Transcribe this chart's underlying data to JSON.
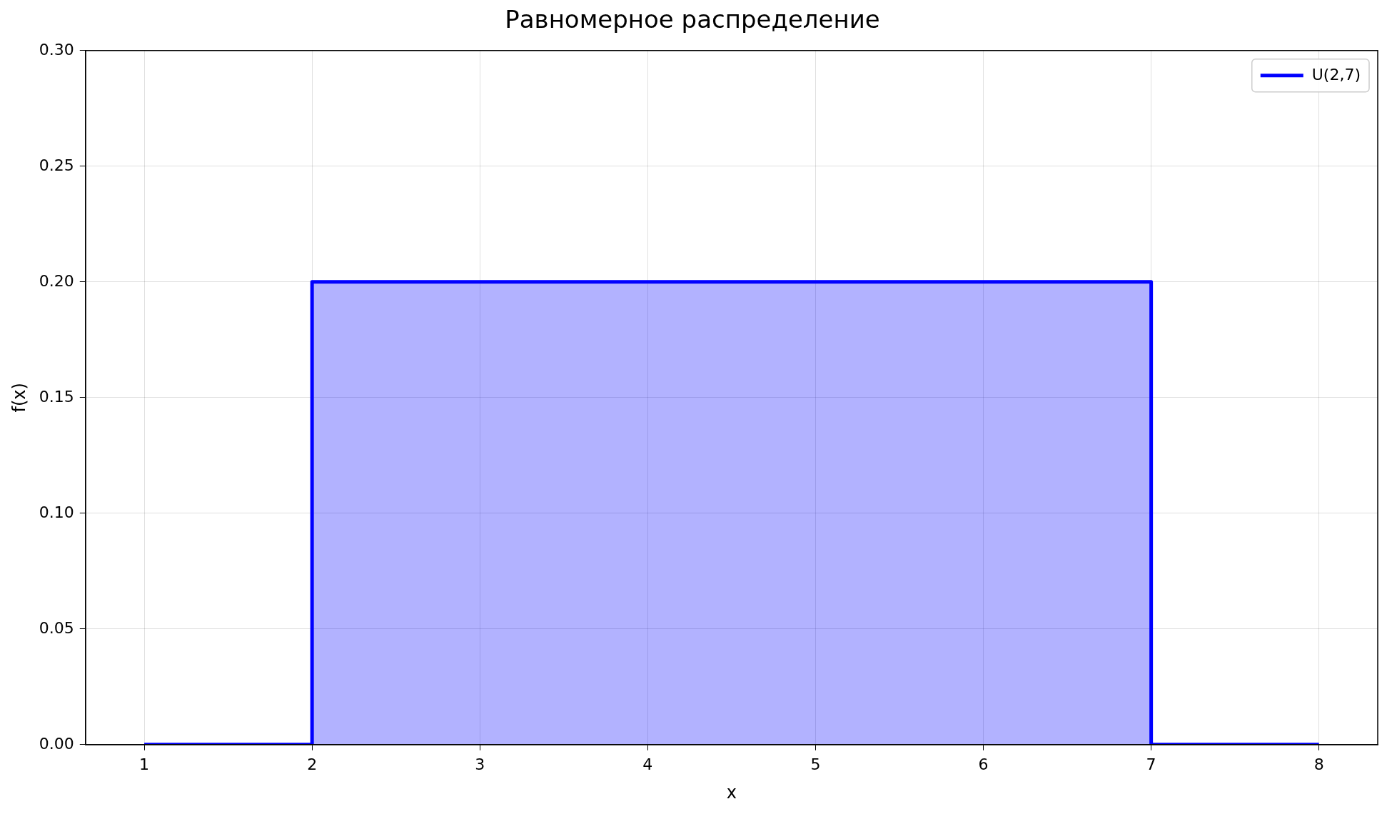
{
  "chart_data": {
    "type": "area",
    "title": "Равномерное распределение",
    "xlabel": "x",
    "ylabel": "f(x)",
    "series": [
      {
        "name": "U(2,7)",
        "color": "#0000ff",
        "x": [
          1,
          2,
          2,
          7,
          7,
          8
        ],
        "values": [
          0,
          0,
          0.2,
          0.2,
          0,
          0
        ]
      }
    ],
    "xlim": [
      0.65,
      8.35
    ],
    "xticks": [
      1,
      2,
      3,
      4,
      5,
      6,
      7,
      8
    ],
    "ylim": [
      0,
      0.3
    ],
    "yticks": [
      {
        "value": 0,
        "label": "0.00"
      },
      {
        "value": 0.05,
        "label": "0.05"
      },
      {
        "value": 0.1,
        "label": "0.10"
      },
      {
        "value": 0.15,
        "label": "0.15"
      },
      {
        "value": 0.2,
        "label": "0.20"
      },
      {
        "value": 0.25,
        "label": "0.25"
      },
      {
        "value": 0.3,
        "label": "0.30"
      }
    ],
    "grid": true,
    "legend": "top right"
  }
}
